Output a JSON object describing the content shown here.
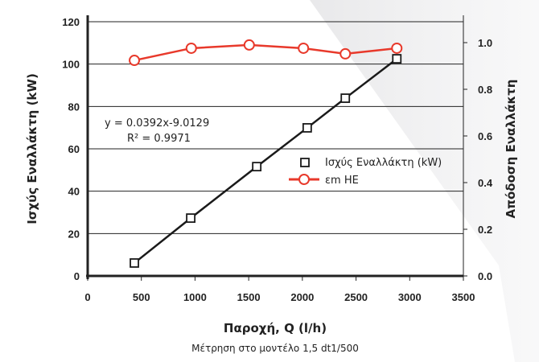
{
  "chart_data": {
    "type": "line",
    "xlabel": "Παροχή, Q (l/h)",
    "subtitle": "Μέτρηση στο μοντέλο 1,5 dt1/500",
    "ylabel_left": "Ισχύς Εναλλάκτη (kW)",
    "ylabel_right": "Απόδοση Εναλλάκτη",
    "xlim": [
      0,
      3500
    ],
    "ylim_left": [
      0,
      120
    ],
    "ylim_right": [
      0,
      1.1
    ],
    "x_ticks": [
      "0",
      "500",
      "1000",
      "1500",
      "2000",
      "2500",
      "3000",
      "3500"
    ],
    "y_left_ticks": [
      "0",
      "20",
      "40",
      "60",
      "80",
      "100",
      "120"
    ],
    "y_right_ticks": [
      "0.0",
      "0.2",
      "0.4",
      "0.6",
      "0.8",
      "1.0"
    ],
    "grid": true,
    "legend_position": "center-right",
    "annotation": {
      "equation": "y = 0.0392x-9.0129",
      "r2": "R² = 0.9971"
    },
    "series": [
      {
        "name": "Ισχύς Εναλλάκτη (kW)",
        "axis": "left",
        "color": "#1a1a1a",
        "marker": "square",
        "x": [
          435,
          960,
          1575,
          2045,
          2400,
          2880
        ],
        "y": [
          6.1,
          27.3,
          51.6,
          69.9,
          83.9,
          102.5
        ]
      },
      {
        "name": "εm HE",
        "axis": "right",
        "color": "#e8392b",
        "marker": "circle",
        "x": [
          435,
          965,
          1505,
          2010,
          2400,
          2880
        ],
        "y": [
          0.924,
          0.976,
          0.99,
          0.976,
          0.952,
          0.976
        ]
      }
    ]
  }
}
